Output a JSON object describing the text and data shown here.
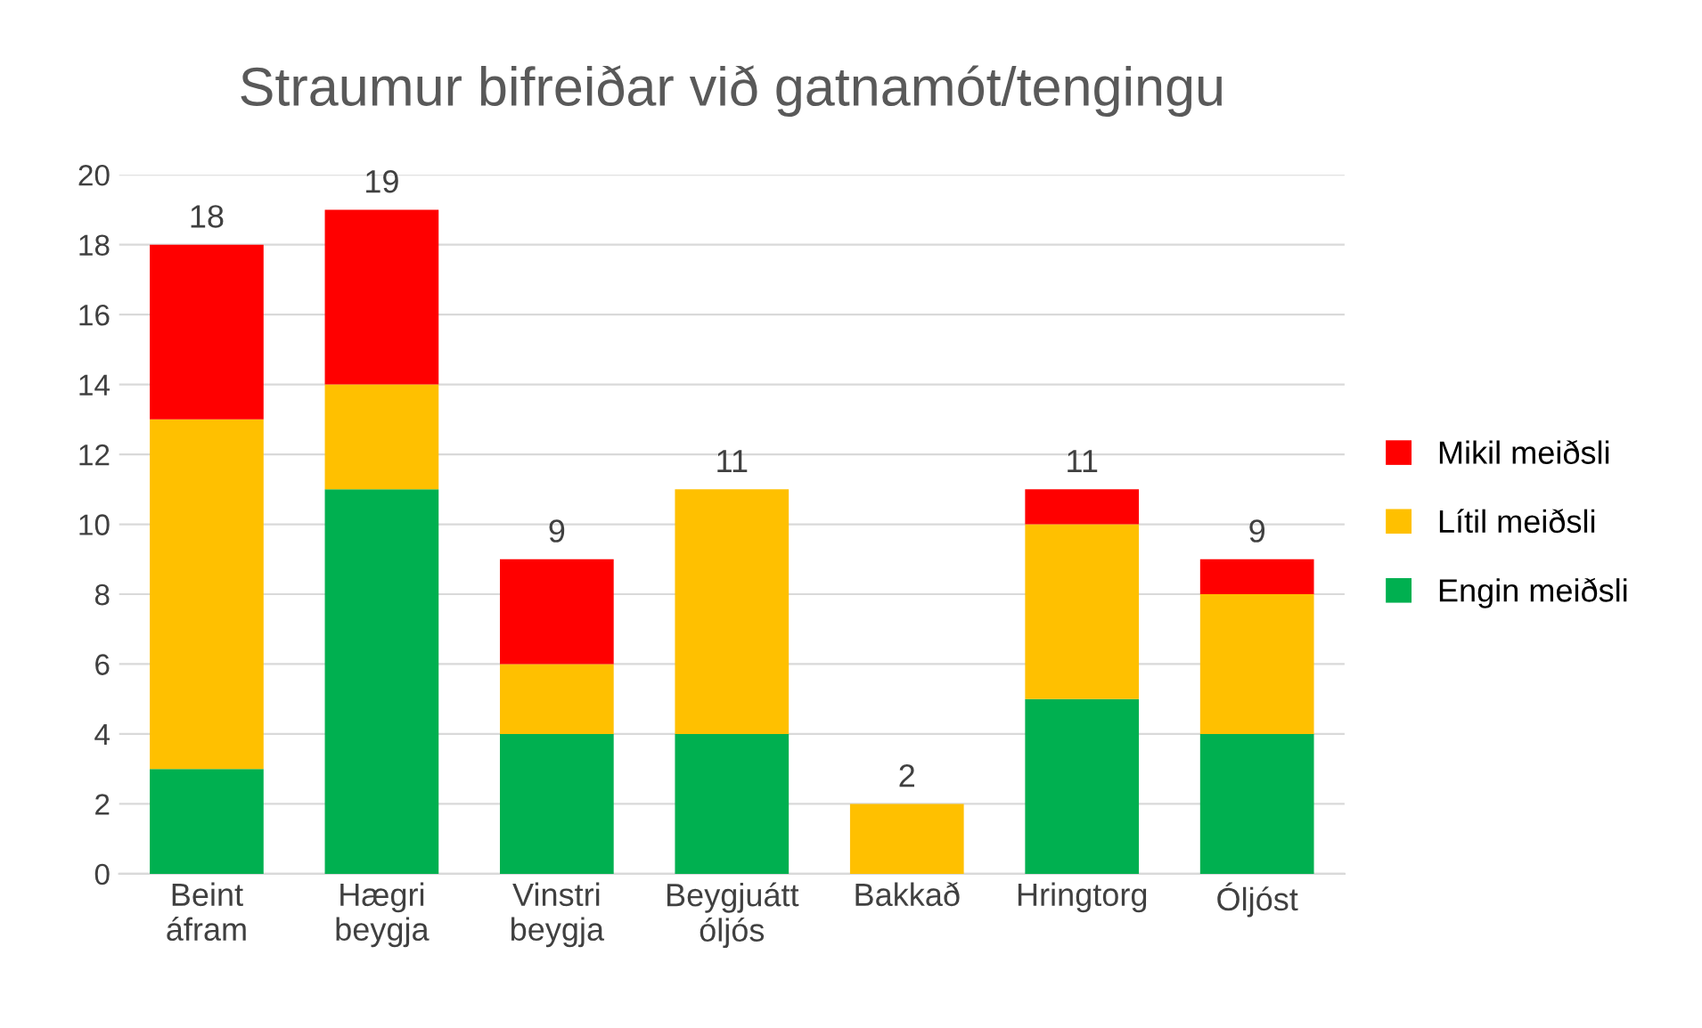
{
  "chart_data": {
    "type": "bar",
    "title": "Straumur bifreiðar við gatnamót/tengingu",
    "categories": [
      "Beint áfram",
      "Hægri beygja",
      "Vinstri beygja",
      "Beygjuátt óljós",
      "Bakkað",
      "Hringtorg",
      "Óljóst"
    ],
    "stacked": true,
    "series": [
      {
        "name": "Engin meiðsli",
        "color": "#00b050",
        "values": [
          3,
          11,
          4,
          4,
          0,
          5,
          4
        ]
      },
      {
        "name": "Lítil meiðsli",
        "color": "#ffc000",
        "values": [
          10,
          3,
          2,
          7,
          2,
          5,
          4
        ]
      },
      {
        "name": "Mikil meiðsli",
        "color": "#ff0000",
        "values": [
          5,
          5,
          3,
          0,
          0,
          1,
          1
        ]
      }
    ],
    "totals": [
      "18",
      "19",
      "9",
      "11",
      "2",
      "11",
      "9"
    ],
    "ylim": [
      0,
      20
    ],
    "yticks": [
      0,
      2,
      4,
      6,
      8,
      10,
      12,
      14,
      16,
      18,
      20
    ],
    "grid": "y",
    "legend": "right"
  }
}
